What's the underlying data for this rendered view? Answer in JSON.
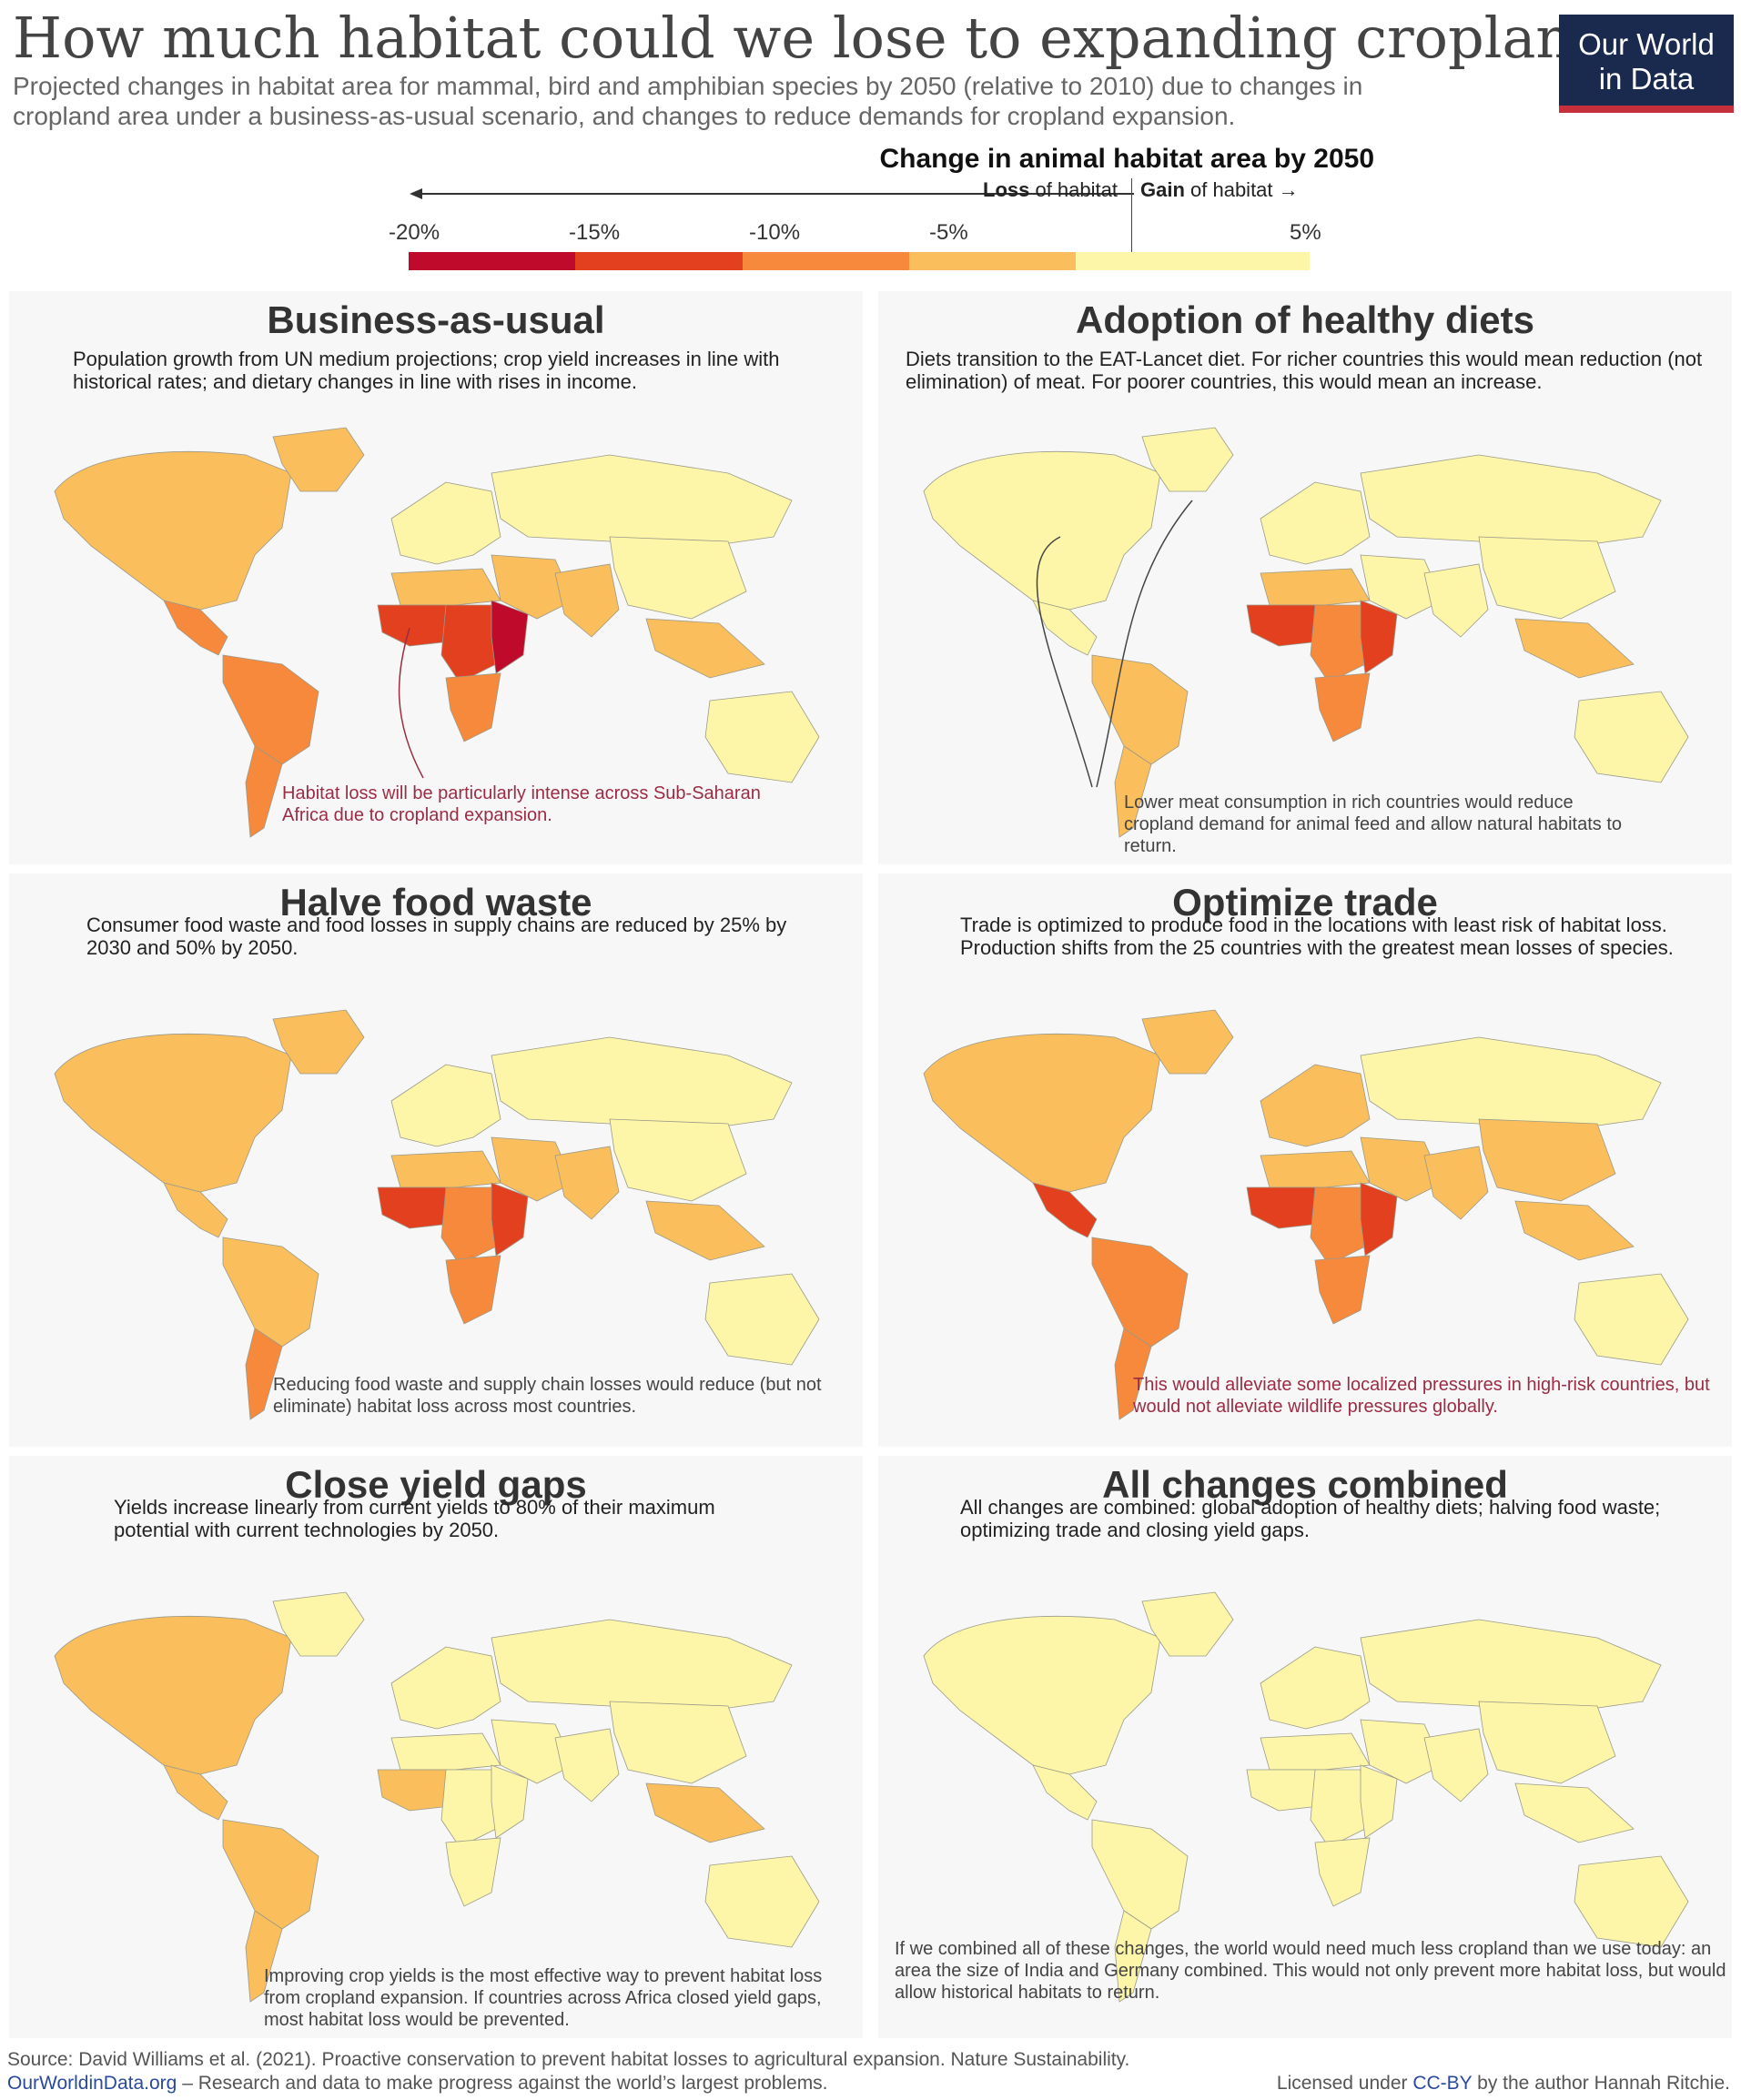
{
  "title": "How much habitat could we lose to expanding croplands?",
  "subtitle": "Projected changes in habitat area for mammal, bird and amphibian species by 2050 (relative to 2010) due to changes in cropland area under a  business-as-usual scenario, and changes to reduce demands for cropland expansion.",
  "logo": {
    "line1": "Our World",
    "line2": "in Data"
  },
  "legend": {
    "title": "Change in animal habitat area by 2050",
    "loss_bold": "Loss",
    "loss_rest": " of habitat",
    "gain_bold": "Gain",
    "gain_rest": " of habitat",
    "ticks": [
      "-20%",
      "-15%",
      "-10%",
      "-5%",
      "5%"
    ],
    "bins": [
      {
        "from": -20,
        "to": -15,
        "color": "#bf0a2c"
      },
      {
        "from": -15,
        "to": -10,
        "color": "#e2401f"
      },
      {
        "from": -10,
        "to": -5,
        "color": "#f7893c"
      },
      {
        "from": -5,
        "to": 0,
        "color": "#fbbe5c"
      },
      {
        "from": 0,
        "to": 5,
        "color": "#fdf6a8"
      }
    ]
  },
  "panels": [
    {
      "title": "Business-as-usual",
      "description": "Population growth from UN medium projections; crop yield increases in line with historical rates; and dietary changes in line with rises in income.",
      "note": "Habitat loss will be particularly intense across Sub-Saharan Africa due to cropland expansion."
    },
    {
      "title": "Adoption of healthy diets",
      "description": "Diets transition to the EAT-Lancet diet. For richer countries this would mean reduction (not elimination) of meat. For poorer countries, this would mean an increase.",
      "note": "Lower meat consumption in rich countries would reduce cropland demand for animal feed and allow natural habitats to return."
    },
    {
      "title": "Halve food waste",
      "description": "Consumer food waste and food losses in supply chains are reduced by 25% by 2030 and 50% by 2050.",
      "note": "Reducing food waste and supply chain losses would reduce (but not eliminate) habitat loss across most countries."
    },
    {
      "title": "Optimize trade",
      "description": "Trade is optimized to produce food in the locations with least risk of habitat loss. Production shifts from the 25 countries with the greatest mean losses of species.",
      "note": "This would alleviate some localized pressures in high-risk countries, but would not alleviate wildlife pressures globally."
    },
    {
      "title": "Close yield gaps",
      "description": "Yields increase linearly from current yields to 80% of their maximum potential with current technologies by 2050.",
      "note": "Improving crop yields is the most effective way to prevent habitat loss from cropland expansion. If countries across Africa closed yield gaps, most habitat loss would be prevented."
    },
    {
      "title": "All changes combined",
      "description": "All changes are combined: global adoption of healthy diets; halving food waste; optimizing trade and closing yield gaps.",
      "note": "If we combined all of these changes, the world would need much less cropland than we use today: an area the size of India and Germany combined. This would not only prevent more habitat loss, but would allow historical habitats to return."
    }
  ],
  "footer": {
    "source": "Source: David Williams et al. (2021). Proactive conservation to prevent habitat losses to agricultural expansion. Nature Sustainability.",
    "site": "OurWorldinData.org",
    "site_rest": " – Research and data to make progress against the world’s largest problems.",
    "license_pre": "Licensed under ",
    "license_link": "CC-BY",
    "license_post": " by the author Hannah Ritchie."
  }
}
